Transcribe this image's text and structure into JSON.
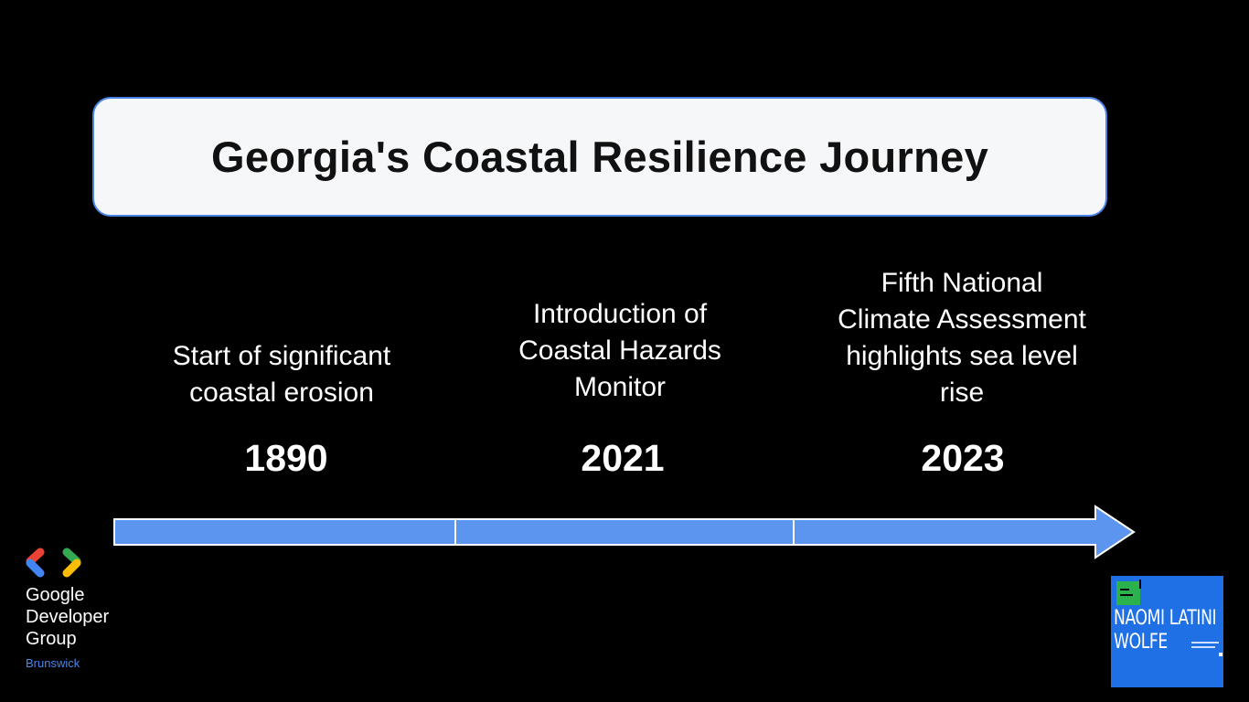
{
  "title": "Georgia's Coastal Resilience Journey",
  "events": [
    {
      "year": "1890",
      "description_lines": [
        "Start of significant",
        "coastal erosion"
      ]
    },
    {
      "year": "2021",
      "description_lines": [
        "Introduction of",
        "Coastal Hazards",
        "Monitor"
      ]
    },
    {
      "year": "2023",
      "description_lines": [
        "Fifth National",
        "Climate Assessment",
        "highlights sea level",
        "rise"
      ]
    }
  ],
  "colors": {
    "background": "#000000",
    "title_box": "#f6f7f9",
    "accent_blue": "#4a86e8",
    "arrow_fill": "#5b95f0",
    "badge_blue": "#1f6fe5",
    "badge_green": "#2bb24c"
  },
  "branding": {
    "logo_icon": "google-developer-groups-icon",
    "name_lines": [
      "Google",
      "Developer",
      "Group"
    ],
    "chapter": "Brunswick"
  },
  "speaker_badge": {
    "name_lines": [
      "NAOMI LATINI",
      "WOLFE"
    ]
  }
}
